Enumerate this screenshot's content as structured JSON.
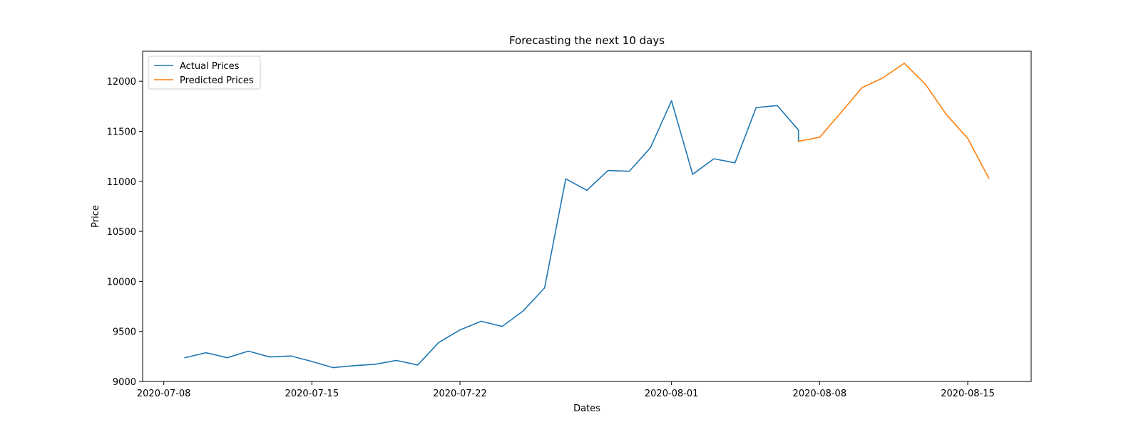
{
  "chart_data": {
    "type": "line",
    "title": "Forecasting the next 10 days",
    "xlabel": "Dates",
    "ylabel": "Price",
    "xlim": [
      "2020-07-07",
      "2020-08-18"
    ],
    "ylim": [
      9000,
      12300
    ],
    "x_ticks": [
      "2020-07-08",
      "2020-07-15",
      "2020-07-22",
      "2020-08-01",
      "2020-08-08",
      "2020-08-15"
    ],
    "y_ticks": [
      9000,
      9500,
      10000,
      10500,
      11000,
      11500,
      12000
    ],
    "grid": false,
    "legend_position": "top-left",
    "series": [
      {
        "name": "Actual Prices",
        "color": "#1f77b4",
        "points": [
          [
            "2020-07-09",
            9237
          ],
          [
            "2020-07-10",
            9287
          ],
          [
            "2020-07-11",
            9237
          ],
          [
            "2020-07-12",
            9303
          ],
          [
            "2020-07-13",
            9245
          ],
          [
            "2020-07-14",
            9255
          ],
          [
            "2020-07-15",
            9200
          ],
          [
            "2020-07-16",
            9138
          ],
          [
            "2020-07-17",
            9158
          ],
          [
            "2020-07-18",
            9172
          ],
          [
            "2020-07-19",
            9210
          ],
          [
            "2020-07-20",
            9165
          ],
          [
            "2020-07-21",
            9390
          ],
          [
            "2020-07-22",
            9515
          ],
          [
            "2020-07-23",
            9602
          ],
          [
            "2020-07-24",
            9550
          ],
          [
            "2020-07-25",
            9707
          ],
          [
            "2020-07-26",
            9935
          ],
          [
            "2020-07-27",
            11025
          ],
          [
            "2020-07-28",
            10910
          ],
          [
            "2020-07-29",
            11108
          ],
          [
            "2020-07-30",
            11100
          ],
          [
            "2020-07-31",
            11335
          ],
          [
            "2020-08-01",
            11805
          ],
          [
            "2020-08-02",
            11070
          ],
          [
            "2020-08-03",
            11225
          ],
          [
            "2020-08-04",
            11185
          ],
          [
            "2020-08-05",
            11737
          ],
          [
            "2020-08-06",
            11757
          ],
          [
            "2020-08-07",
            11512
          ],
          [
            "2020-08-07",
            11400
          ]
        ]
      },
      {
        "name": "Predicted Prices",
        "color": "#ff7f0e",
        "points": [
          [
            "2020-08-07",
            11400
          ],
          [
            "2020-08-08",
            11440
          ],
          [
            "2020-08-09",
            11685
          ],
          [
            "2020-08-10",
            11935
          ],
          [
            "2020-08-11",
            12035
          ],
          [
            "2020-08-12",
            12180
          ],
          [
            "2020-08-13",
            11970
          ],
          [
            "2020-08-14",
            11665
          ],
          [
            "2020-08-15",
            11430
          ],
          [
            "2020-08-16",
            11030
          ]
        ]
      }
    ]
  }
}
